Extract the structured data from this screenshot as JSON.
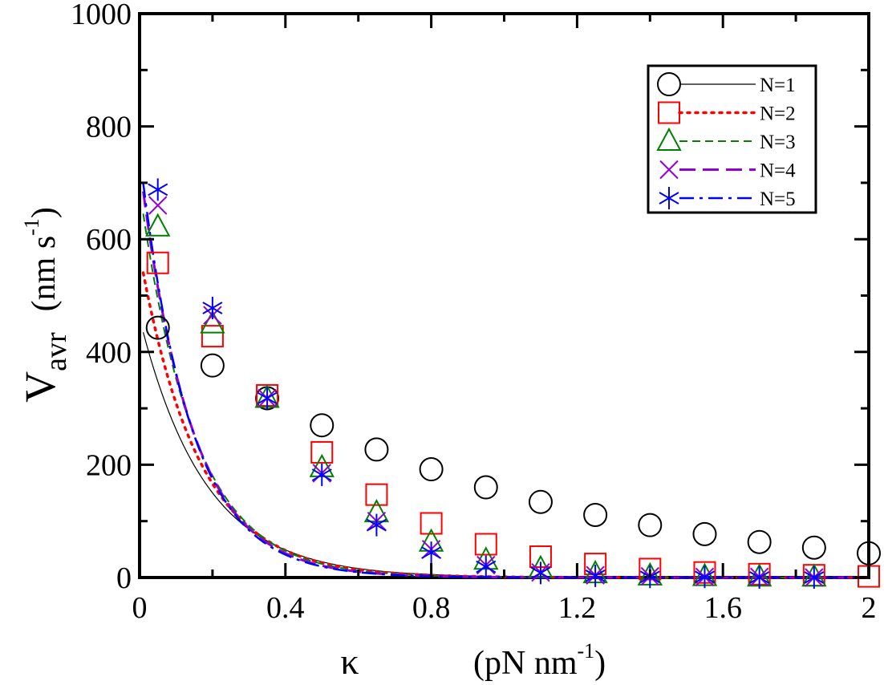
{
  "chart_data": {
    "type": "scatter",
    "title": "",
    "xlabel": "κ (pN nm⁻¹)",
    "xlabel_parts": {
      "symbol": "κ",
      "unit_open": "(pN nm",
      "unit_exp": "-1",
      "unit_close": ")"
    },
    "ylabel": "V_avr (nm s⁻¹)",
    "ylabel_parts": {
      "symbol": "V",
      "sub": "avr",
      "unit_open": "(nm s",
      "unit_exp": "-1",
      "unit_close": ")"
    },
    "xlim": [
      0,
      2
    ],
    "ylim": [
      0,
      1000
    ],
    "xticks": [
      0,
      0.4,
      0.8,
      1.2,
      1.6,
      2
    ],
    "xtick_labels": [
      "0",
      "0.4",
      "0.8",
      "1.2",
      "1.6",
      "2"
    ],
    "yticks": [
      0,
      200,
      400,
      600,
      800,
      1000
    ],
    "ytick_labels": [
      "0",
      "200",
      "400",
      "600",
      "800",
      "1000"
    ],
    "legend_position": "top-right",
    "series": [
      {
        "name": "N=1",
        "marker": "circle",
        "color": "#000000",
        "line_style": "solid",
        "line_width": 1.2,
        "x": [
          0.05,
          0.2,
          0.35,
          0.5,
          0.65,
          0.8,
          0.95,
          1.1,
          1.25,
          1.4,
          1.55,
          1.7,
          1.85,
          2.0
        ],
        "values": [
          443,
          376,
          318,
          270,
          227,
          192,
          160,
          134,
          111,
          93,
          77,
          63,
          53,
          43
        ],
        "curve": {
          "y0": 460,
          "decay": 5.6
        }
      },
      {
        "name": "N=2",
        "marker": "square",
        "color": "#ff0000",
        "line_style": "dotted",
        "line_width": 3.5,
        "x": [
          0.05,
          0.2,
          0.35,
          0.5,
          0.65,
          0.8,
          0.95,
          1.1,
          1.25,
          1.4,
          1.55,
          1.7,
          1.85,
          2.0
        ],
        "values": [
          558,
          428,
          323,
          222,
          147,
          96,
          59,
          37,
          24,
          15,
          9,
          6,
          4,
          2
        ],
        "curve": {
          "y0": 575,
          "decay": 6.2
        }
      },
      {
        "name": "N=3",
        "marker": "triangle",
        "color": "#008000",
        "line_style": "dashed",
        "line_width": 2,
        "x": [
          0.05,
          0.2,
          0.35,
          0.5,
          0.65,
          0.8,
          0.95,
          1.1,
          1.25,
          1.4,
          1.55,
          1.7,
          1.85
        ],
        "values": [
          622,
          450,
          318,
          195,
          115,
          63,
          31,
          16,
          7,
          3,
          2,
          1,
          1
        ],
        "curve": {
          "y0": 690,
          "decay": 6.7
        }
      },
      {
        "name": "N=4",
        "marker": "cross",
        "color": "#9400d3",
        "line_style": "longdash",
        "line_width": 3,
        "x": [
          0.05,
          0.2,
          0.35,
          0.5,
          0.65,
          0.8,
          0.95,
          1.1,
          1.25,
          1.4,
          1.55,
          1.7,
          1.85
        ],
        "values": [
          660,
          465,
          318,
          185,
          100,
          50,
          22,
          9,
          4,
          2,
          1,
          1,
          0
        ],
        "curve": {
          "y0": 735,
          "decay": 7.1
        }
      },
      {
        "name": "N=5",
        "marker": "asterisk",
        "color": "#0000ff",
        "line_style": "dashdot",
        "line_width": 2.5,
        "x": [
          0.05,
          0.2,
          0.35,
          0.5,
          0.65,
          0.8,
          0.95,
          1.1,
          1.25,
          1.4,
          1.55,
          1.7,
          1.85
        ],
        "values": [
          688,
          478,
          318,
          182,
          93,
          44,
          19,
          8,
          3,
          1,
          1,
          0,
          0
        ],
        "curve": {
          "y0": 752,
          "decay": 7.3
        }
      }
    ]
  }
}
